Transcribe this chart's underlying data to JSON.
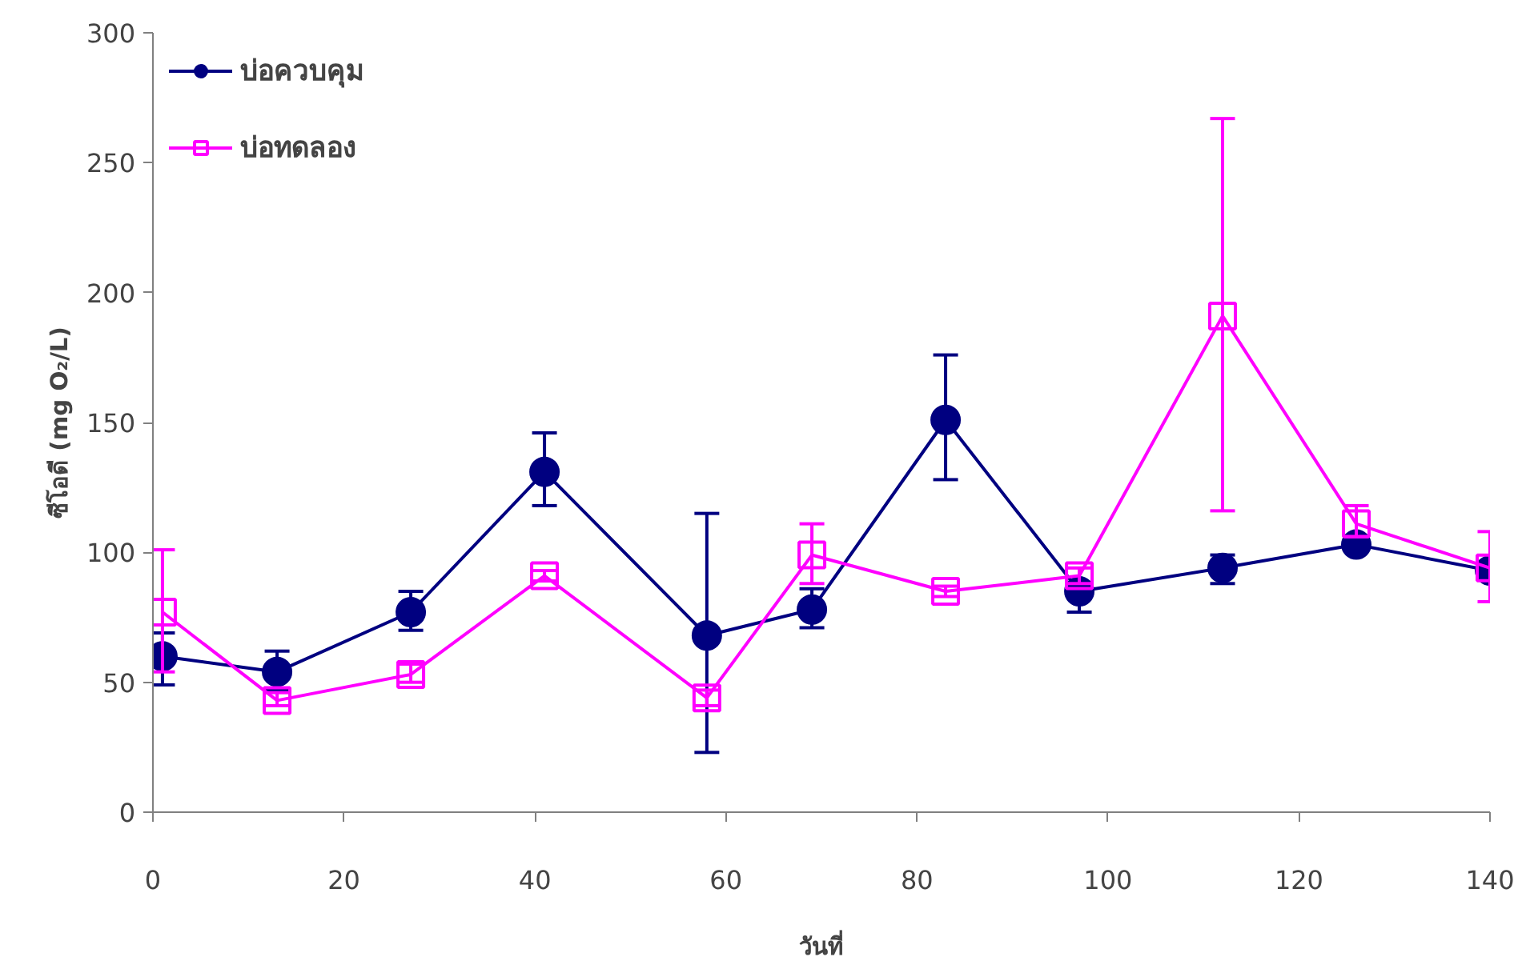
{
  "chart_data": {
    "type": "line",
    "xlabel": "วันที่",
    "ylabel": "ซีโอดี (mg O₂/L)",
    "xlim": [
      0,
      140
    ],
    "xticks": [
      0,
      20,
      40,
      60,
      80,
      100,
      120,
      140
    ],
    "ylim": [
      0,
      300
    ],
    "yticks": [
      0,
      50,
      100,
      150,
      200,
      250,
      300
    ],
    "grid": false,
    "legend": "top left",
    "line_style": "solid",
    "series": [
      {
        "name": "บ่อควบคุม",
        "color": "#000080",
        "marker": "circle",
        "x": [
          1,
          13,
          27,
          41,
          58,
          69,
          83,
          97,
          112,
          126,
          140
        ],
        "values": [
          60,
          54,
          77,
          131,
          68,
          78,
          151,
          85,
          94,
          103,
          93
        ],
        "errors": [
          [
            49,
            69
          ],
          [
            47,
            62
          ],
          [
            70,
            85
          ],
          [
            118,
            146
          ],
          [
            23,
            115
          ],
          [
            71,
            86
          ],
          [
            128,
            176
          ],
          [
            77,
            88
          ],
          [
            88,
            99
          ],
          null,
          [
            90,
            96
          ]
        ]
      },
      {
        "name": "บ่อทดลอง",
        "color": "#ff00ff",
        "marker": "square",
        "x": [
          1,
          13,
          27,
          41,
          58,
          69,
          83,
          97,
          112,
          126,
          140
        ],
        "values": [
          77,
          43,
          53,
          91,
          44,
          99,
          85,
          91,
          191,
          111,
          94
        ],
        "errors": [
          [
            54,
            101
          ],
          [
            41,
            46
          ],
          [
            50,
            57
          ],
          [
            89,
            93
          ],
          [
            41,
            47
          ],
          [
            88,
            111
          ],
          [
            83,
            87
          ],
          [
            88,
            94
          ],
          [
            116,
            267
          ],
          [
            106,
            118
          ],
          [
            81,
            108
          ]
        ]
      }
    ]
  }
}
